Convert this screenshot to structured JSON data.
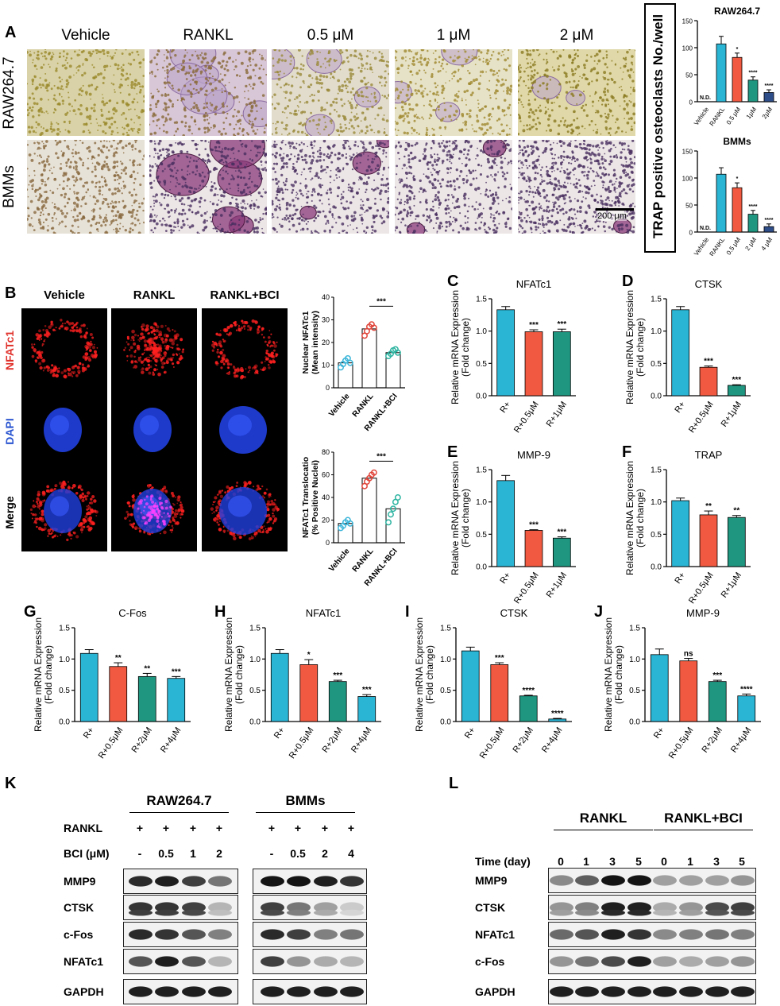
{
  "panelA": {
    "letter": "A",
    "columns": [
      "Vehicle",
      "RANKL",
      "0.5 μM",
      "1 μM",
      "2 μM"
    ],
    "rows": [
      "RAW264.7",
      "BMMs"
    ],
    "scalebar": "200 μm",
    "ylabel": "TRAP positive osteoclasts No./well"
  },
  "panelB": {
    "letter": "B",
    "columns": [
      "Vehicle",
      "RANKL",
      "RANKL+BCI"
    ],
    "rows": [
      "NFATc1",
      "DAPI",
      "Merge"
    ]
  },
  "chart_data": [
    {
      "id": "A-raw",
      "type": "bar",
      "title": "RAW264.7",
      "categories": [
        "Vehicle",
        "RANKL",
        "0.5 μM",
        "1μM",
        "2μM"
      ],
      "values": [
        0,
        107,
        82,
        40,
        17
      ],
      "errors": [
        0,
        14,
        8,
        6,
        5
      ],
      "labels": [
        "N.D.",
        "",
        "*",
        "****",
        "****"
      ],
      "ylim": [
        0,
        150
      ],
      "ticks": [
        0,
        50,
        100,
        150
      ],
      "colors": [
        "#2bb5d4",
        "#2bb5d4",
        "#f15a40",
        "#1f9680",
        "#2e4e8a"
      ]
    },
    {
      "id": "A-bmm",
      "type": "bar",
      "title": "BMMs",
      "categories": [
        "Vehicle",
        "RANKL",
        "0.5 μM",
        "2 μM",
        "4 μM"
      ],
      "values": [
        0,
        107,
        82,
        33,
        10
      ],
      "errors": [
        0,
        12,
        9,
        7,
        5
      ],
      "labels": [
        "N.D.",
        "",
        "*",
        "****",
        "****"
      ],
      "ylim": [
        0,
        150
      ],
      "ticks": [
        0,
        50,
        100,
        150
      ],
      "colors": [
        "#2bb5d4",
        "#2bb5d4",
        "#f15a40",
        "#1f9680",
        "#2e4e8a"
      ]
    },
    {
      "id": "B-1",
      "type": "scatter-bar",
      "ylabel": "Nuclear NFATc1 (Mean intensity)",
      "ylabel_lines": [
        "Nuclear NFATc1",
        "(Mean intensity)"
      ],
      "categories": [
        "Vehicle",
        "RANKL",
        "RANKL+BCI"
      ],
      "values": [
        11,
        26,
        15.5
      ],
      "points": [
        [
          9,
          10.5,
          12,
          13,
          11
        ],
        [
          23,
          25,
          27,
          28,
          26.5
        ],
        [
          14,
          15,
          16.5,
          17,
          15.5
        ]
      ],
      "ylim": [
        0,
        40
      ],
      "ticks": [
        0,
        10,
        20,
        30,
        40
      ],
      "sig": "***",
      "colors": [
        "#3ab5d9",
        "#e0453a",
        "#2bb3a0"
      ]
    },
    {
      "id": "B-2",
      "type": "scatter-bar",
      "ylabel": "NFATc1 Translocatio (% Positive Nuclei)",
      "ylabel_lines": [
        "NFATc1 Translocatio",
        "(% Positive Nuclei)"
      ],
      "categories": [
        "Vehicle",
        "RANKL",
        "RANKL+BCI"
      ],
      "values": [
        17,
        57,
        30
      ],
      "points": [
        [
          13,
          15,
          18,
          20,
          17
        ],
        [
          50,
          54,
          57,
          60,
          62
        ],
        [
          18,
          25,
          30,
          36,
          40
        ]
      ],
      "ylim": [
        0,
        80
      ],
      "ticks": [
        0,
        20,
        40,
        60,
        80
      ],
      "sig": "***",
      "colors": [
        "#3ab5d9",
        "#e0453a",
        "#2bb3a0"
      ]
    },
    {
      "id": "C",
      "type": "bar",
      "letter": "C",
      "title": "NFATc1",
      "ylabel": "Relative mRNA Expression (Fold change)",
      "categories": [
        "R+",
        "R+0.5μM",
        "R+1μM"
      ],
      "values": [
        1.33,
        0.99,
        0.99
      ],
      "errors": [
        0.05,
        0.03,
        0.04
      ],
      "labels": [
        "",
        "***",
        "***"
      ],
      "ylim": [
        0,
        1.5
      ],
      "ticks": [
        "0.0",
        "0.5",
        "1.0",
        "1.5"
      ],
      "colors": [
        "#2bb5d4",
        "#f15a40",
        "#1f9680"
      ]
    },
    {
      "id": "D",
      "type": "bar",
      "letter": "D",
      "title": "CTSK",
      "ylabel": "Relative mRNA Expression (Fold change)",
      "categories": [
        "R+",
        "R+0.5μM",
        "R+1μM"
      ],
      "values": [
        1.33,
        0.44,
        0.16
      ],
      "errors": [
        0.05,
        0.02,
        0.01
      ],
      "labels": [
        "",
        "***",
        "***"
      ],
      "ylim": [
        0,
        1.5
      ],
      "ticks": [
        "0.0",
        "0.5",
        "1.0",
        "1.5"
      ],
      "colors": [
        "#2bb5d4",
        "#f15a40",
        "#1f9680"
      ]
    },
    {
      "id": "E",
      "type": "bar",
      "letter": "E",
      "title": "MMP-9",
      "ylabel": "Relative mRNA Expression (Fold change)",
      "categories": [
        "R+",
        "R+0.5μM",
        "R+1μM"
      ],
      "values": [
        1.33,
        0.56,
        0.44
      ],
      "errors": [
        0.08,
        0.01,
        0.02
      ],
      "labels": [
        "",
        "***",
        "***"
      ],
      "ylim": [
        0,
        1.5
      ],
      "ticks": [
        "0.0",
        "0.5",
        "1.0",
        "1.5"
      ],
      "colors": [
        "#2bb5d4",
        "#f15a40",
        "#1f9680"
      ]
    },
    {
      "id": "F",
      "type": "bar",
      "letter": "F",
      "title": "TRAP",
      "ylabel": "Relative mRNA Expression (Fold change)",
      "categories": [
        "R+",
        "R+0.5μM",
        "R+1μM"
      ],
      "values": [
        1.02,
        0.8,
        0.76
      ],
      "errors": [
        0.04,
        0.06,
        0.03
      ],
      "labels": [
        "",
        "**",
        "**"
      ],
      "ylim": [
        0,
        1.5
      ],
      "ticks": [
        "0.0",
        "0.5",
        "1.0",
        "1.5"
      ],
      "colors": [
        "#2bb5d4",
        "#f15a40",
        "#1f9680"
      ]
    },
    {
      "id": "G",
      "type": "bar",
      "letter": "G",
      "title": "C-Fos",
      "ylabel": "Relative mRNA Expression (Fold change)",
      "categories": [
        "R+",
        "R+0.5μM",
        "R+2μM",
        "R+4μM"
      ],
      "values": [
        1.09,
        0.88,
        0.72,
        0.69
      ],
      "errors": [
        0.06,
        0.06,
        0.05,
        0.03
      ],
      "labels": [
        "",
        "**",
        "**",
        "***"
      ],
      "ylim": [
        0,
        1.5
      ],
      "ticks": [
        "0.0",
        "0.5",
        "1.0",
        "1.5"
      ],
      "colors": [
        "#2bb5d4",
        "#f15a40",
        "#1f9680",
        "#2bb5d4"
      ]
    },
    {
      "id": "H",
      "type": "bar",
      "letter": "H",
      "title": "NFATc1",
      "ylabel": "Relative mRNA Expression (Fold change)",
      "categories": [
        "R+",
        "R+0.5μM",
        "R+2μM",
        "R+4μM"
      ],
      "values": [
        1.09,
        0.91,
        0.64,
        0.4
      ],
      "errors": [
        0.06,
        0.08,
        0.02,
        0.03
      ],
      "labels": [
        "",
        "*",
        "***",
        "***"
      ],
      "ylim": [
        0,
        1.5
      ],
      "ticks": [
        "0.0",
        "0.5",
        "1.0",
        "1.5"
      ],
      "colors": [
        "#2bb5d4",
        "#f15a40",
        "#1f9680",
        "#2bb5d4"
      ]
    },
    {
      "id": "I",
      "type": "bar",
      "letter": "I",
      "title": "CTSK",
      "ylabel": "Relative mRNA Expression (Fold change)",
      "categories": [
        "R+",
        "R+0.5μM",
        "R+2μM",
        "R+4μM"
      ],
      "values": [
        1.13,
        0.91,
        0.41,
        0.04
      ],
      "errors": [
        0.06,
        0.03,
        0.01,
        0.01
      ],
      "labels": [
        "",
        "***",
        "****",
        "****"
      ],
      "ylim": [
        0,
        1.5
      ],
      "ticks": [
        "0.0",
        "0.5",
        "1.0",
        "1.5"
      ],
      "colors": [
        "#2bb5d4",
        "#f15a40",
        "#1f9680",
        "#2bb5d4"
      ]
    },
    {
      "id": "J",
      "type": "bar",
      "letter": "J",
      "title": "MMP-9",
      "ylabel": "Relative mRNA Expression (Fold change)",
      "categories": [
        "R+",
        "R+0.5μM",
        "R+2μM",
        "R+4μM"
      ],
      "values": [
        1.07,
        0.97,
        0.64,
        0.41
      ],
      "errors": [
        0.09,
        0.04,
        0.02,
        0.03
      ],
      "labels": [
        "",
        "ns",
        "***",
        "****"
      ],
      "ylim": [
        0,
        1.5
      ],
      "ticks": [
        "0.0",
        "0.5",
        "1.0",
        "1.5"
      ],
      "colors": [
        "#2bb5d4",
        "#f15a40",
        "#1f9680",
        "#2bb5d4"
      ]
    }
  ],
  "panelK": {
    "letter": "K",
    "groups": [
      "RAW264.7",
      "BMMs"
    ],
    "rankl_label": "RANKL",
    "bci_label": "BCI (μM)",
    "rankl_marks": [
      "+",
      "+",
      "+",
      "+",
      "+",
      "+",
      "+",
      "+"
    ],
    "bci_doses": [
      "-",
      "0.5",
      "1",
      "2",
      "-",
      "0.5",
      "2",
      "4"
    ],
    "proteins": [
      "MMP9",
      "CTSK",
      "c-Fos",
      "NFATc1",
      "GAPDH"
    ],
    "intensity": [
      [
        0.9,
        0.95,
        0.8,
        0.55,
        1,
        1,
        0.95,
        0.85
      ],
      [
        0.85,
        0.85,
        0.8,
        0.25,
        0.8,
        0.55,
        0.35,
        0.15
      ],
      [
        0.9,
        0.85,
        0.7,
        0.5,
        0.9,
        0.8,
        0.5,
        0.55
      ],
      [
        0.7,
        0.95,
        0.7,
        0.25,
        0.8,
        0.4,
        0.3,
        0.25
      ],
      [
        0.95,
        0.95,
        0.95,
        0.95,
        0.95,
        0.95,
        0.95,
        0.95
      ]
    ]
  },
  "panelL": {
    "letter": "L",
    "groups": [
      "RANKL",
      "RANKL+BCI"
    ],
    "time_label": "Time (day)",
    "days": [
      "0",
      "1",
      "3",
      "5",
      "0",
      "1",
      "3",
      "5"
    ],
    "proteins": [
      "MMP9",
      "CTSK",
      "NFATc1",
      "c-Fos",
      "GAPDH"
    ],
    "intensity": [
      [
        0.45,
        0.65,
        1,
        1,
        0.35,
        0.35,
        0.35,
        0.4
      ],
      [
        0.4,
        0.5,
        0.95,
        0.95,
        0.3,
        0.4,
        0.75,
        0.8
      ],
      [
        0.6,
        0.7,
        0.95,
        0.85,
        0.45,
        0.5,
        0.55,
        0.5
      ],
      [
        0.4,
        0.55,
        0.75,
        0.95,
        0.35,
        0.3,
        0.35,
        0.4
      ],
      [
        0.95,
        0.95,
        0.95,
        0.95,
        0.95,
        0.95,
        0.95,
        0.95
      ]
    ]
  }
}
